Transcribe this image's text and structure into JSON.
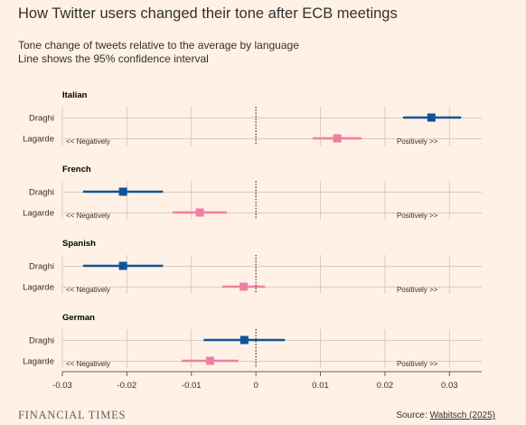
{
  "header": {
    "title": "How Twitter users changed their tone after ECB meetings",
    "subtitle_lines": [
      "Tone change of tweets relative to the average by language",
      "Line shows the 95% confidence interval"
    ]
  },
  "footer": {
    "brand": "FINANCIAL TIMES",
    "source_prefix": "Source: ",
    "source_link": "Wabitsch (2025)"
  },
  "colors": {
    "background": "#FFF1E5",
    "draghi": "#0F5499",
    "lagarde": "#F07EA4",
    "grid": "#D8CCC1",
    "axis": "#66605C"
  },
  "chart_data": {
    "type": "dot-and-whisker",
    "xlim": [
      -0.03,
      0.035
    ],
    "x_ticks": [
      -0.03,
      -0.02,
      -0.01,
      0,
      0.01,
      0.02,
      0.03
    ],
    "x_tick_labels": [
      "-0.03",
      "-0.02",
      "-0.01",
      "0",
      "0.01",
      "0.02",
      "0.03"
    ],
    "reference_line": 0,
    "annotations": {
      "negative": "<< Negatively",
      "positive": "Positively >>"
    },
    "series": [
      {
        "name": "Draghi",
        "color": "#0F5499"
      },
      {
        "name": "Lagarde",
        "color": "#F07EA4"
      }
    ],
    "panels": [
      {
        "language": "Italian",
        "rows": [
          {
            "name": "Draghi",
            "estimate": 0.0272,
            "ci_low": 0.0228,
            "ci_high": 0.0318
          },
          {
            "name": "Lagarde",
            "estimate": 0.0126,
            "ci_low": 0.0088,
            "ci_high": 0.0164
          }
        ]
      },
      {
        "language": "French",
        "rows": [
          {
            "name": "Draghi",
            "estimate": -0.0206,
            "ci_low": -0.0268,
            "ci_high": -0.0144
          },
          {
            "name": "Lagarde",
            "estimate": -0.0087,
            "ci_low": -0.0129,
            "ci_high": -0.0045
          }
        ]
      },
      {
        "language": "Spanish",
        "rows": [
          {
            "name": "Draghi",
            "estimate": -0.0206,
            "ci_low": -0.0268,
            "ci_high": -0.0144
          },
          {
            "name": "Lagarde",
            "estimate": -0.0019,
            "ci_low": -0.0052,
            "ci_high": 0.0014
          }
        ]
      },
      {
        "language": "German",
        "rows": [
          {
            "name": "Draghi",
            "estimate": -0.0018,
            "ci_low": -0.0081,
            "ci_high": 0.0045
          },
          {
            "name": "Lagarde",
            "estimate": -0.0071,
            "ci_low": -0.0115,
            "ci_high": -0.0027
          }
        ]
      }
    ]
  }
}
